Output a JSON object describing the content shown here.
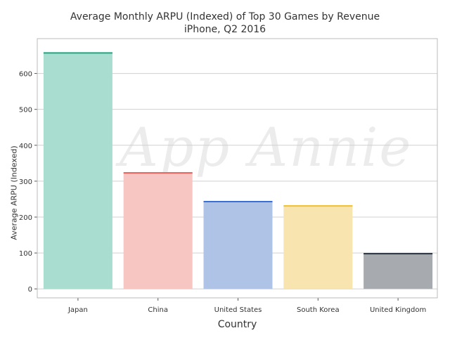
{
  "chart_data": {
    "type": "bar",
    "title": "Average Monthly ARPU (Indexed) of Top 30 Games by Revenue",
    "subtitle": "iPhone, Q2 2016",
    "xlabel": "Country",
    "ylabel": "Average ARPU (Indexed)",
    "categories": [
      "Japan",
      "China",
      "United States",
      "South Korea",
      "United Kingdom"
    ],
    "values": [
      659,
      325,
      245,
      233,
      100
    ],
    "ylim": [
      -25,
      697
    ],
    "yticks": [
      0,
      100,
      200,
      300,
      400,
      500,
      600
    ],
    "grid": true,
    "fill_colors": [
      "#a9ddd0",
      "#f7c6c2",
      "#afc3e6",
      "#f8e4ae",
      "#a7abaf"
    ],
    "edge_colors": [
      "#1fa67f",
      "#e8605a",
      "#3b6fd6",
      "#f0c030",
      "#2a3340"
    ],
    "watermark": "App Annie"
  }
}
